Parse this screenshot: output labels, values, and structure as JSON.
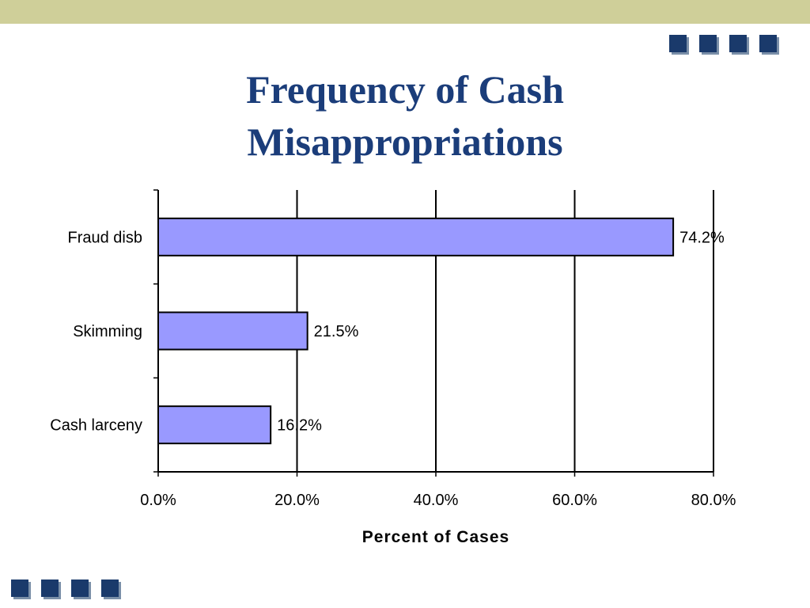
{
  "slide": {
    "title_line1": "Frequency of Cash",
    "title_line2": "Misappropriations",
    "accent_color": "#1a3a6b",
    "band_color": "#cfcf99",
    "title_color": "#1b3d7a"
  },
  "chart_data": {
    "type": "bar",
    "orientation": "horizontal",
    "title": "Frequency of Cash Misappropriations",
    "categories": [
      "Fraud disb",
      "Skimming",
      "Cash larceny"
    ],
    "values": [
      74.2,
      21.5,
      16.2
    ],
    "value_labels": [
      "74.2%",
      "21.5%",
      "16.2%"
    ],
    "xlabel": "Percent of Cases",
    "ylabel": "",
    "xlim": [
      0,
      80
    ],
    "x_ticks": [
      "0.0%",
      "20.0%",
      "40.0%",
      "60.0%",
      "80.0%"
    ],
    "grid": "vertical",
    "legend": "none",
    "bar_color": "#9999ff"
  }
}
